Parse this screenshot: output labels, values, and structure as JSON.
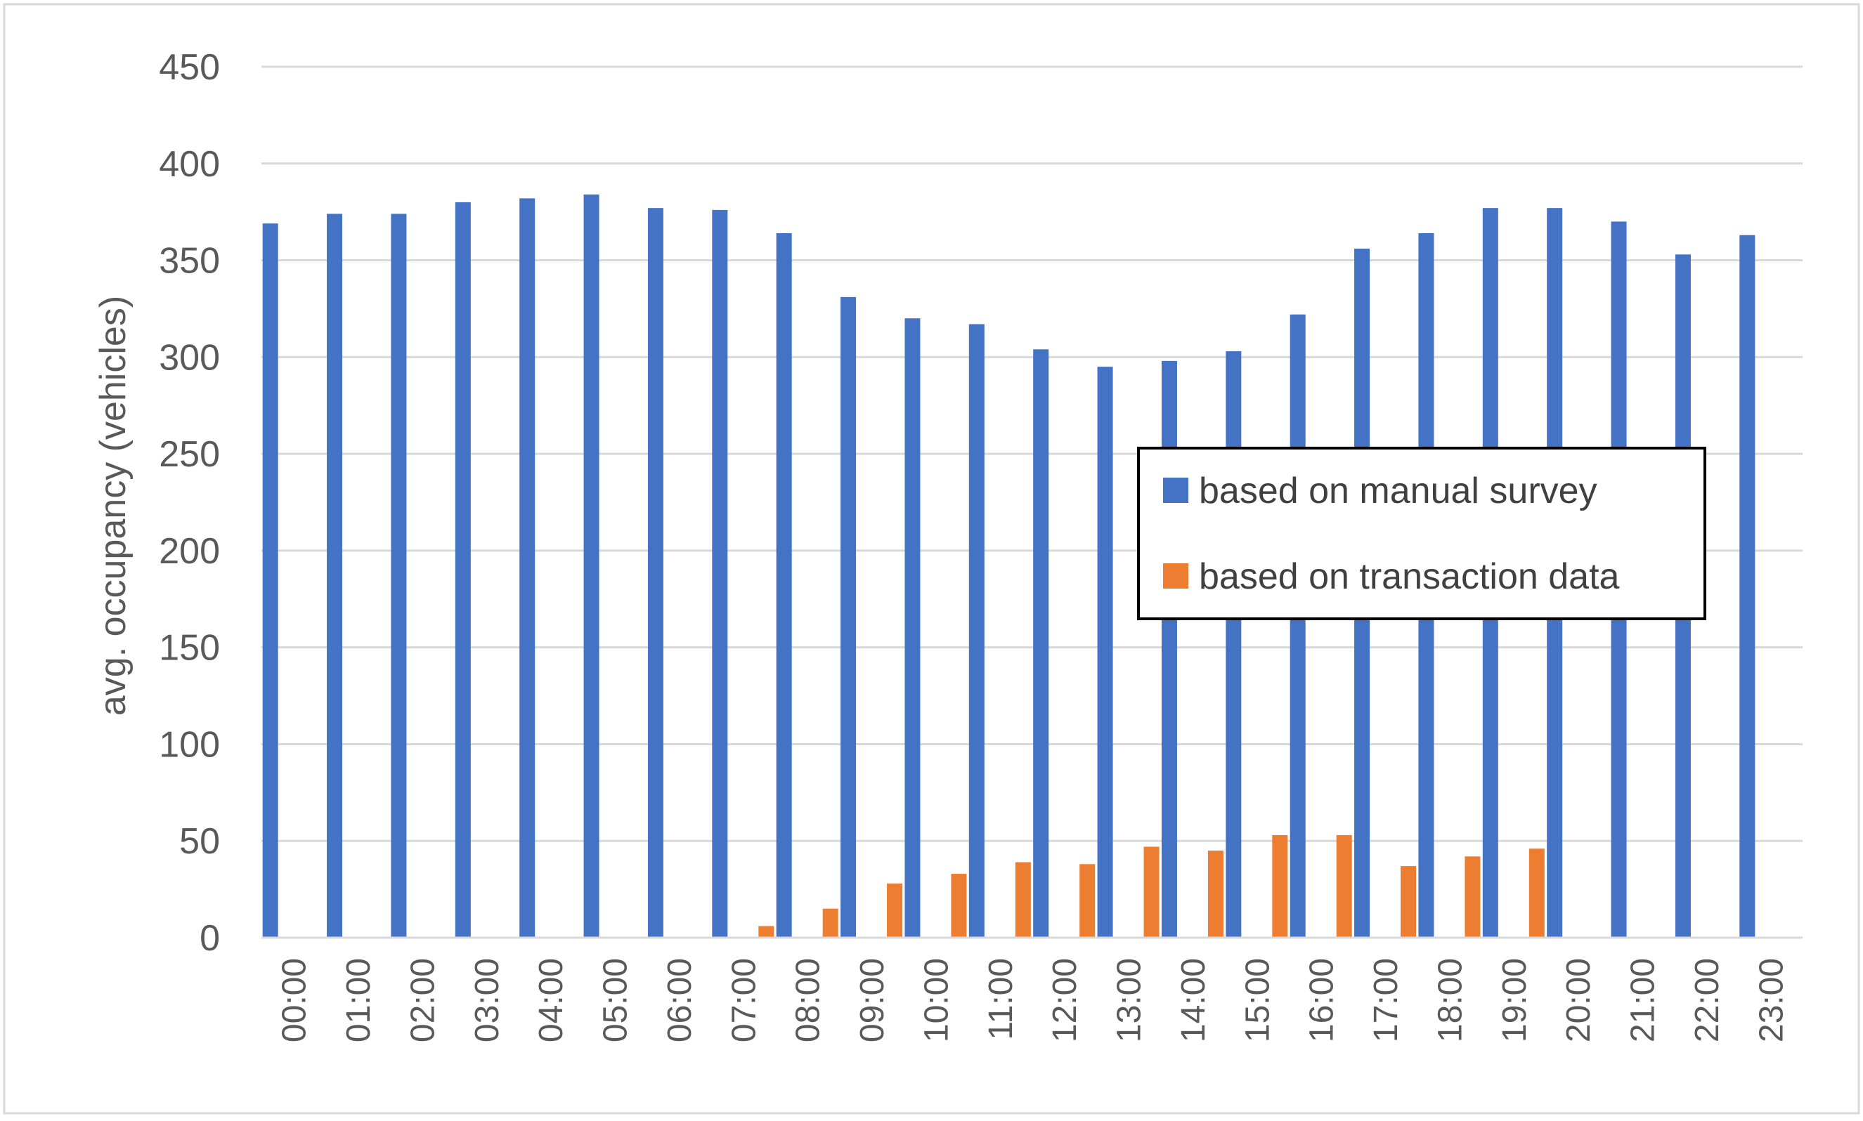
{
  "colors": {
    "series_1": "#4472C4",
    "series_2": "#ED7D31",
    "gridline": "#D9D9D9",
    "frame": "#D9D9D9",
    "legend_border": "#000000",
    "text": "#595959"
  },
  "chart_data": {
    "type": "bar",
    "title": "",
    "xlabel": "",
    "ylabel": "avg. occupancy (vehicles)",
    "ylim": [
      0,
      450
    ],
    "yticks": [
      0,
      50,
      100,
      150,
      200,
      250,
      300,
      350,
      400,
      450
    ],
    "yticks_labels": [
      "0",
      "50",
      "100",
      "150",
      "200",
      "250",
      "300",
      "350",
      "400",
      "450"
    ],
    "grid": true,
    "legend_position": "center-right",
    "categories": [
      "00:00",
      "01:00",
      "02:00",
      "03:00",
      "04:00",
      "05:00",
      "06:00",
      "07:00",
      "08:00",
      "09:00",
      "10:00",
      "11:00",
      "12:00",
      "13:00",
      "14:00",
      "15:00",
      "16:00",
      "17:00",
      "18:00",
      "19:00",
      "20:00",
      "21:00",
      "22:00",
      "23:00"
    ],
    "series": [
      {
        "name": "based on manual survey",
        "color": "#4472C4",
        "values": [
          369,
          374,
          374,
          380,
          382,
          384,
          377,
          376,
          364,
          331,
          320,
          317,
          304,
          295,
          298,
          303,
          322,
          356,
          364,
          377,
          377,
          370,
          353,
          363
        ]
      },
      {
        "name": "based on transaction data",
        "color": "#ED7D31",
        "values": [
          0,
          0,
          0,
          0,
          0,
          0,
          0,
          6,
          15,
          28,
          33,
          39,
          38,
          47,
          45,
          53,
          53,
          37,
          42,
          46,
          0,
          0,
          0,
          0
        ]
      }
    ]
  }
}
